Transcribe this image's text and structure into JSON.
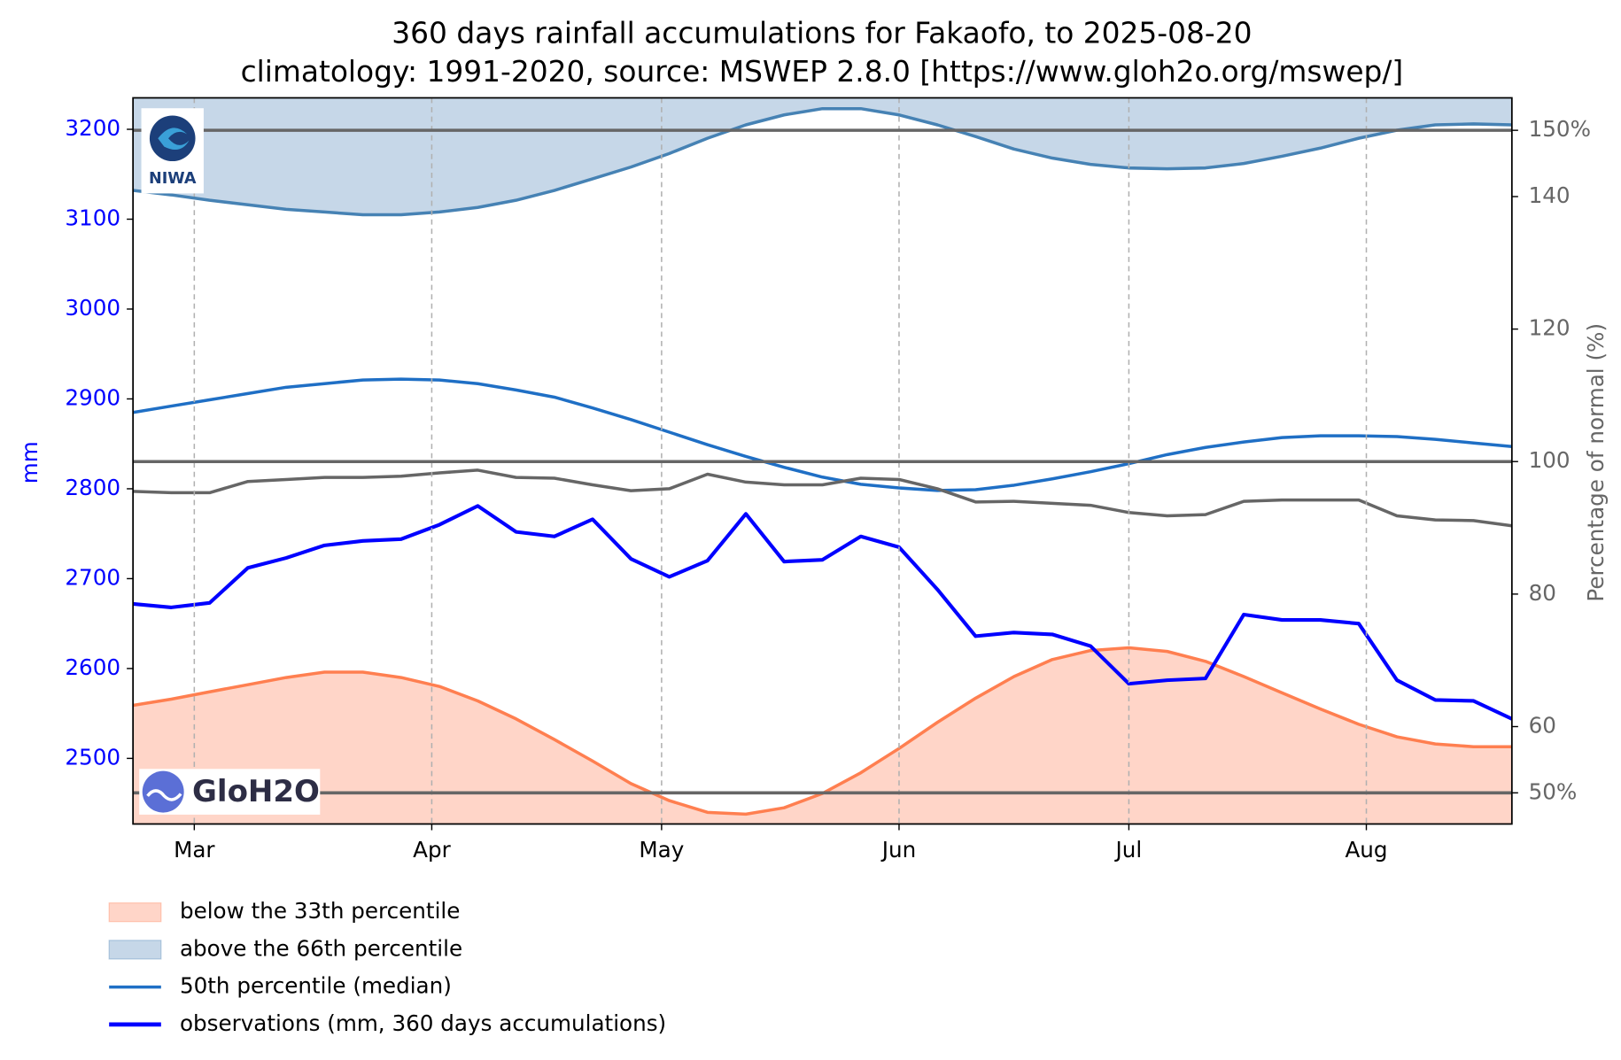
{
  "chart_data": {
    "type": "line",
    "title": "360 days rainfall accumulations for Fakaofo, to 2025-08-20",
    "subtitle": "climatology: 1991-2020, source: MSWEP 2.8.0 [https://www.gloh2o.org/mswep/]",
    "ylabel": "mm",
    "y2label": "Percentage of normal (%)",
    "logos": [
      "NIWA",
      "GloH2O"
    ],
    "x": [
      "2025-02-21",
      "2025-02-26",
      "2025-03-03",
      "2025-03-08",
      "2025-03-13",
      "2025-03-18",
      "2025-03-23",
      "2025-03-28",
      "2025-04-02",
      "2025-04-07",
      "2025-04-12",
      "2025-04-17",
      "2025-04-22",
      "2025-04-27",
      "2025-05-02",
      "2025-05-07",
      "2025-05-12",
      "2025-05-17",
      "2025-05-22",
      "2025-05-27",
      "2025-06-01",
      "2025-06-06",
      "2025-06-11",
      "2025-06-16",
      "2025-06-21",
      "2025-06-26",
      "2025-07-01",
      "2025-07-06",
      "2025-07-11",
      "2025-07-16",
      "2025-07-21",
      "2025-07-26",
      "2025-07-31",
      "2025-08-05",
      "2025-08-10",
      "2025-08-15",
      "2025-08-20"
    ],
    "xlim": [
      "2025-02-21",
      "2025-08-20"
    ],
    "xticks": [
      {
        "value": "2025-03-01",
        "label": "Mar"
      },
      {
        "value": "2025-04-01",
        "label": "Apr"
      },
      {
        "value": "2025-05-01",
        "label": "May"
      },
      {
        "value": "2025-06-01",
        "label": "Jun"
      },
      {
        "value": "2025-07-01",
        "label": "Jul"
      },
      {
        "value": "2025-08-01",
        "label": "Aug"
      }
    ],
    "ylim": [
      2427,
      3235
    ],
    "yticks": [
      2500,
      2600,
      2700,
      2800,
      2900,
      3000,
      3100,
      3200
    ],
    "y2lim": [
      45.3,
      154.9
    ],
    "y2ticks": [
      {
        "value": 50,
        "label": "50%"
      },
      60,
      80,
      100,
      120,
      140,
      {
        "value": 150,
        "label": "150%"
      }
    ],
    "y2_hlines": [
      50,
      100,
      150
    ],
    "xgrid": true,
    "legend": "below",
    "series": [
      {
        "name": "below the 33th percentile",
        "kind": "fill-below",
        "color": "#ff7f50",
        "fill": "#ffd5c8",
        "values": [
          2559,
          2566,
          2574,
          2582,
          2590,
          2596,
          2596,
          2590,
          2580,
          2564,
          2544,
          2521,
          2497,
          2472,
          2453,
          2440,
          2438,
          2445,
          2461,
          2484,
          2511,
          2540,
          2567,
          2591,
          2610,
          2620,
          2623,
          2619,
          2608,
          2591,
          2573,
          2555,
          2538,
          2524,
          2516,
          2513,
          2513
        ]
      },
      {
        "name": "above the 66th percentile",
        "kind": "fill-above",
        "color": "#4682b4",
        "fill": "#c6d7e8",
        "values": [
          3132,
          3127,
          3121,
          3116,
          3111,
          3108,
          3105,
          3105,
          3108,
          3113,
          3121,
          3132,
          3145,
          3158,
          3173,
          3190,
          3205,
          3216,
          3223,
          3223,
          3216,
          3205,
          3192,
          3178,
          3168,
          3161,
          3157,
          3156,
          3157,
          3162,
          3170,
          3179,
          3190,
          3199,
          3205,
          3206,
          3205
        ]
      },
      {
        "name": "50th percentile (median)",
        "kind": "line",
        "color": "#1f6fc5",
        "values": [
          2885,
          2892,
          2899,
          2906,
          2913,
          2917,
          2921,
          2922,
          2921,
          2917,
          2910,
          2902,
          2890,
          2877,
          2863,
          2849,
          2836,
          2824,
          2813,
          2805,
          2801,
          2798,
          2799,
          2804,
          2811,
          2819,
          2828,
          2838,
          2846,
          2852,
          2857,
          2859,
          2859,
          2858,
          2855,
          2851,
          2847
        ]
      },
      {
        "name": "observations (mm, 360 days accumulations)",
        "kind": "line",
        "color": "#0000ff",
        "values": [
          2672,
          2668,
          2673,
          2712,
          2723,
          2737,
          2742,
          2744,
          2760,
          2781,
          2752,
          2747,
          2766,
          2722,
          2702,
          2720,
          2772,
          2719,
          2721,
          2747,
          2735,
          2688,
          2636,
          2640,
          2638,
          2625,
          2583,
          2587,
          2589,
          2660,
          2654,
          2654,
          2650,
          2587,
          2565,
          2564,
          2544
        ]
      },
      {
        "kind": "line",
        "axis": "y2",
        "color": "#666666",
        "values": [
          95.5,
          95.3,
          95.3,
          97.0,
          97.3,
          97.6,
          97.6,
          97.8,
          98.3,
          98.7,
          97.6,
          97.5,
          96.5,
          95.6,
          95.9,
          98.1,
          96.9,
          96.5,
          96.5,
          97.5,
          97.3,
          95.9,
          93.9,
          94.0,
          93.7,
          93.4,
          92.3,
          91.8,
          92.0,
          94.0,
          94.2,
          94.2,
          94.2,
          91.8,
          91.2,
          91.1,
          90.3
        ]
      }
    ]
  }
}
